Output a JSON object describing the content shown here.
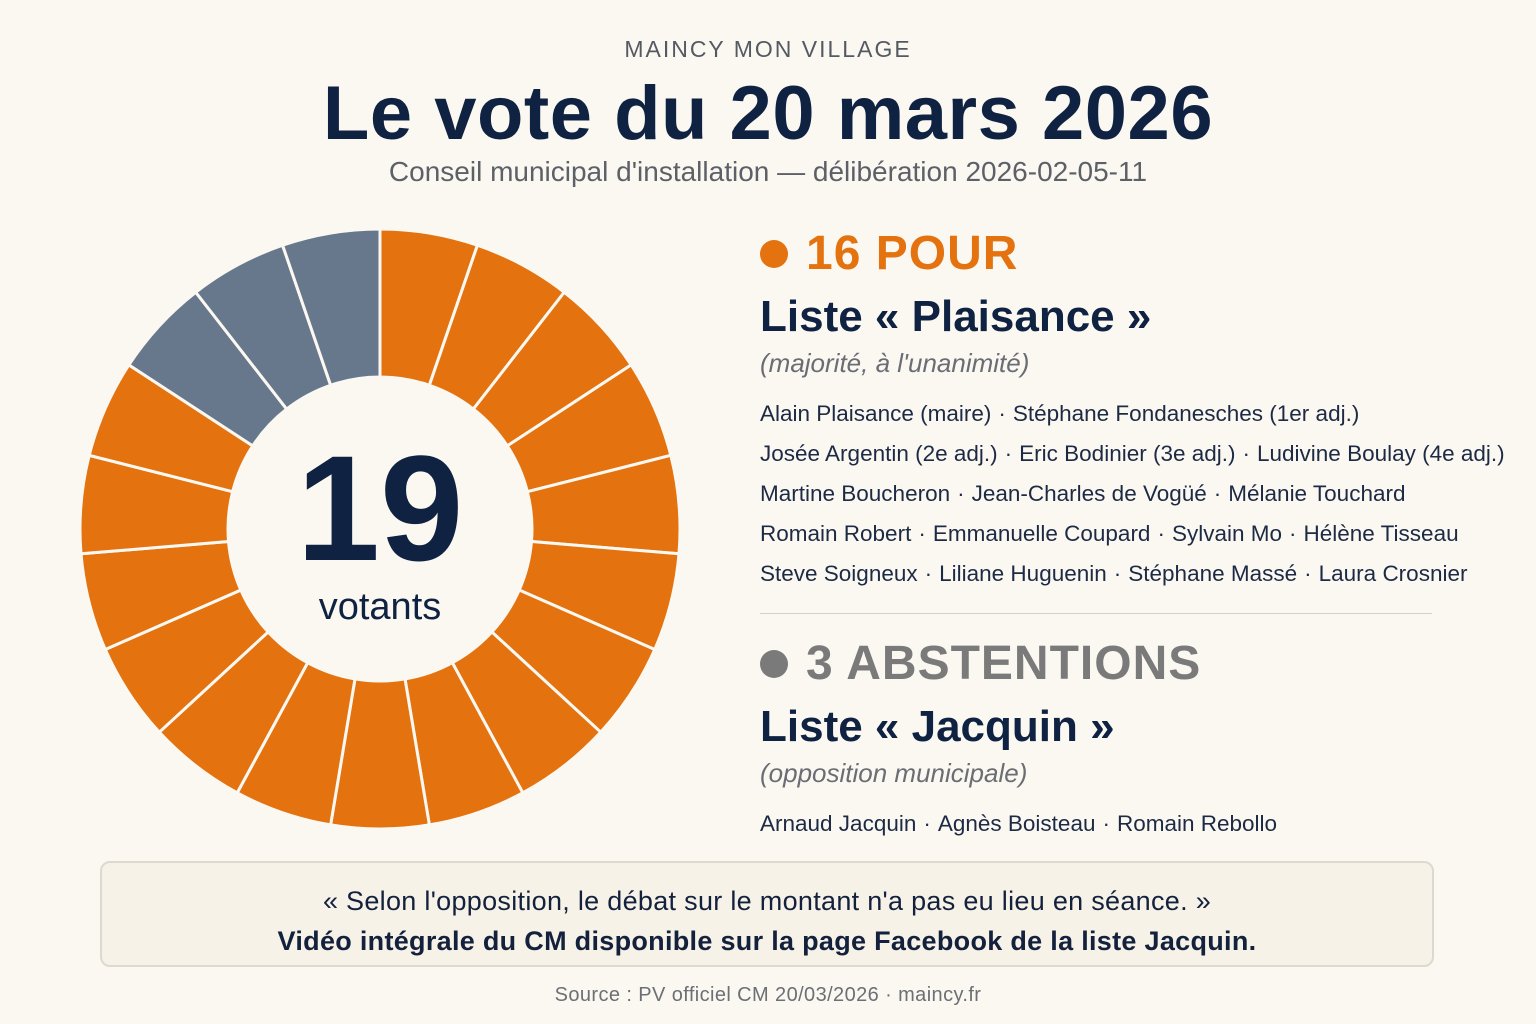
{
  "header": {
    "kicker": "MAINCY MON VILLAGE",
    "title": "Le vote du 20 mars 2026",
    "subtitle": "Conseil municipal d'installation — délibération 2026-02-05-11"
  },
  "colors": {
    "pour": "#e3720f",
    "abstention": "#68788c",
    "abstention_text": "#7a7a7a",
    "center_text": "#0f2242"
  },
  "chart_data": {
    "type": "pie",
    "center_value": "19",
    "center_label": "votants",
    "categories": [
      "POUR",
      "ABSTENTIONS"
    ],
    "values": [
      16,
      3
    ],
    "segments": 19,
    "segment_order": [
      "pour",
      "pour",
      "pour",
      "pour",
      "pour",
      "pour",
      "pour",
      "pour",
      "pour",
      "pour",
      "pour",
      "pour",
      "pour",
      "pour",
      "pour",
      "pour",
      "abstention",
      "abstention",
      "abstention"
    ]
  },
  "pour": {
    "heading": "16 POUR",
    "list_name": "Liste « Plaisance »",
    "note": "(majorité, à l'unanimité)",
    "rows": [
      [
        "Alain Plaisance (maire)",
        "Stéphane Fondanesches (1er adj.)"
      ],
      [
        "Josée Argentin (2e adj.)",
        "Eric Bodinier (3e adj.)",
        "Ludivine Boulay (4e adj.)"
      ],
      [
        "Martine Boucheron",
        "Jean-Charles de Vogüé",
        "Mélanie Touchard"
      ],
      [
        "Romain Robert",
        "Emmanuelle Coupard",
        "Sylvain Mo",
        "Hélène Tisseau"
      ],
      [
        "Steve Soigneux",
        "Liliane Huguenin",
        "Stéphane Massé",
        "Laura Crosnier"
      ]
    ]
  },
  "abstention": {
    "heading": "3 ABSTENTIONS",
    "list_name": "Liste « Jacquin »",
    "note": "(opposition municipale)",
    "rows": [
      [
        "Arnaud Jacquin",
        "Agnès Boisteau",
        "Romain Rebollo"
      ]
    ]
  },
  "quote": {
    "line1": "« Selon l'opposition, le débat sur le montant n'a pas eu lieu en séance. »",
    "line2": "Vidéo intégrale du CM disponible sur la page Facebook de la liste Jacquin."
  },
  "source": "Source : PV officiel CM 20/03/2026 · maincy.fr"
}
